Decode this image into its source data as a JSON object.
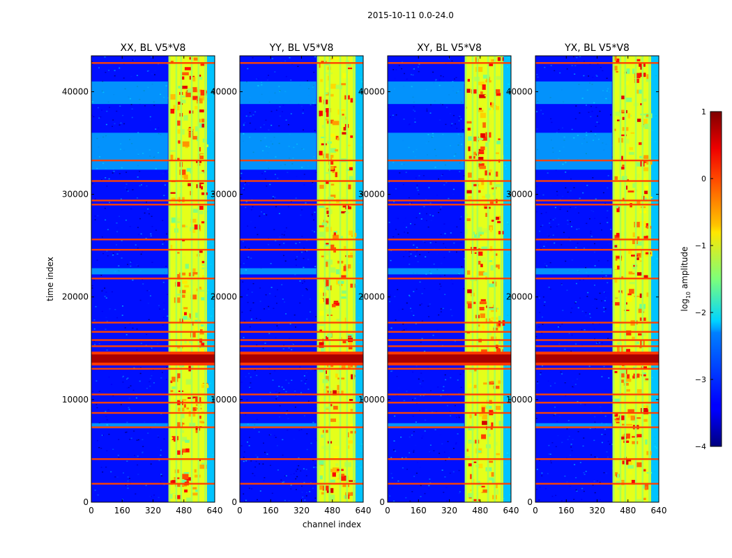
{
  "figure_title": "2015-10-11 0.0-24.0",
  "chart_data": {
    "type": "heatmap",
    "suptitle": "2015-10-11 0.0-24.0",
    "xlabel": "channel index",
    "ylabel": "time index",
    "xlim": [
      0,
      640
    ],
    "ylim": [
      0,
      43500
    ],
    "xticks": [
      0,
      160,
      320,
      480,
      640
    ],
    "yticks": [
      0,
      10000,
      20000,
      30000,
      40000
    ],
    "xtick_labels": [
      "0",
      "160",
      "320",
      "480",
      "640"
    ],
    "ytick_labels": [
      "0",
      "10000",
      "20000",
      "30000",
      "40000"
    ],
    "colormap": "jet",
    "colorbar": {
      "label": "log10 amplitude",
      "label_main": "log",
      "label_sub": "10",
      "label_rest": " amplitude",
      "vmin": -4,
      "vmax": 1,
      "ticks": [
        1,
        0,
        -1,
        -2,
        -3,
        -4
      ],
      "tick_labels": [
        "1",
        "0",
        "−1",
        "−2",
        "−3",
        "−4"
      ]
    },
    "panels": [
      {
        "title": "XX, BL V5*V8",
        "pol": "XX"
      },
      {
        "title": "YY, BL V5*V8",
        "pol": "YY"
      },
      {
        "title": "XY, BL V5*V8",
        "pol": "XY"
      },
      {
        "title": "YX, BL V5*V8",
        "pol": "YX"
      }
    ],
    "features": {
      "background_log10": -3.3,
      "rfi_band_channels": [
        400,
        600
      ],
      "rfi_band_log10": -1.0,
      "rfi_columns": [
        405,
        440,
        465,
        520,
        555,
        590
      ],
      "strong_time_band": [
        13600,
        14400
      ],
      "strong_time_band_log10": 0.8,
      "orange_time_lines": [
        1800,
        4200,
        7300,
        8700,
        9700,
        10500,
        13000,
        15200,
        15800,
        16600,
        17500,
        21800,
        24600,
        25600,
        29000,
        29400,
        31300,
        33300,
        42800
      ],
      "cyan_time_bands": [
        [
          7200,
          7700
        ],
        [
          22200,
          22800
        ],
        [
          32400,
          36000
        ],
        [
          38800,
          41000
        ]
      ]
    }
  }
}
